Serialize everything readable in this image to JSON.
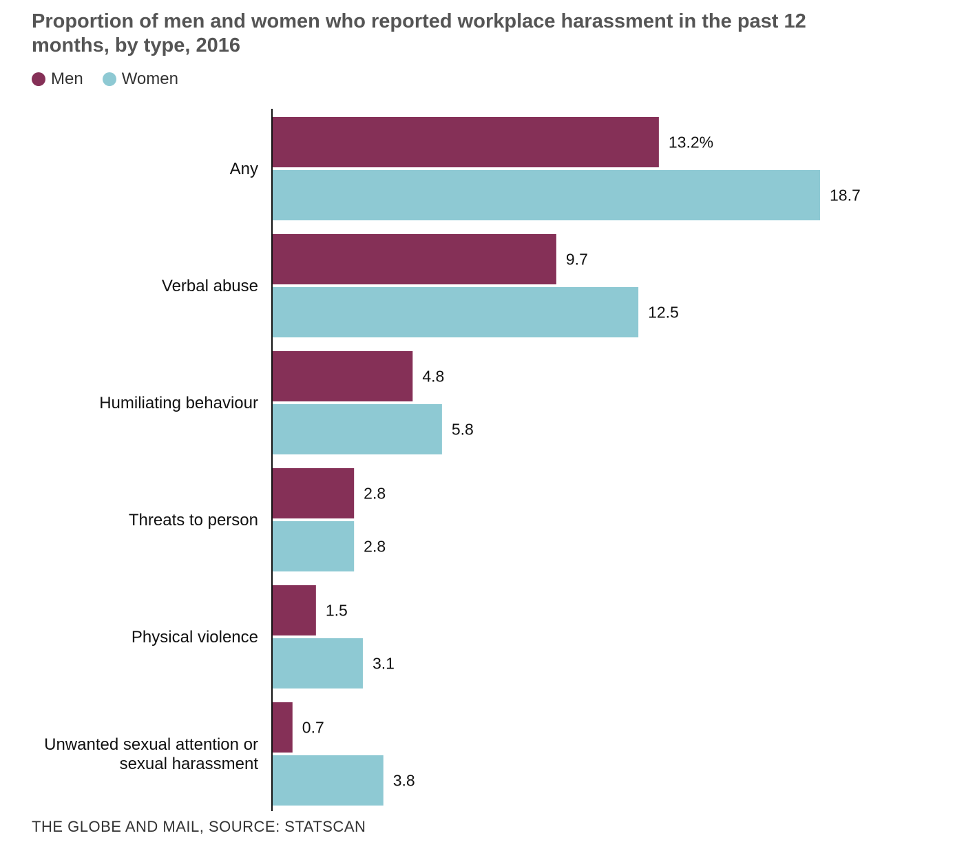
{
  "title": "Proportion of men and women who reported workplace harassment in the past 12 months, by type, 2016",
  "source": "THE GLOBE AND MAIL, SOURCE: STATSCAN",
  "colors": {
    "men": "#853057",
    "women": "#8ec9d3",
    "axis": "#111111"
  },
  "chart_data": {
    "type": "bar",
    "orientation": "horizontal",
    "categories": [
      "Any",
      "Verbal abuse",
      "Humiliating behaviour",
      "Threats to person",
      "Physical violence",
      "Unwanted sexual attention or sexual harassment"
    ],
    "category_label_lines": [
      [
        "Any"
      ],
      [
        "Verbal abuse"
      ],
      [
        "Humiliating behaviour"
      ],
      [
        "Threats to person"
      ],
      [
        "Physical violence"
      ],
      [
        "Unwanted sexual attention or",
        "sexual harassment"
      ]
    ],
    "series": [
      {
        "name": "Men",
        "values": [
          13.2,
          9.7,
          4.8,
          2.8,
          1.5,
          0.7
        ],
        "labels": [
          "13.2%",
          "9.7",
          "4.8",
          "2.8",
          "1.5",
          "0.7"
        ]
      },
      {
        "name": "Women",
        "values": [
          18.7,
          12.5,
          5.8,
          2.8,
          3.1,
          3.8
        ],
        "labels": [
          "18.7",
          "12.5",
          "5.8",
          "2.8",
          "3.1",
          "3.8"
        ]
      }
    ],
    "xlim": [
      0,
      18.7
    ],
    "legend": "top-left",
    "grid": false
  }
}
